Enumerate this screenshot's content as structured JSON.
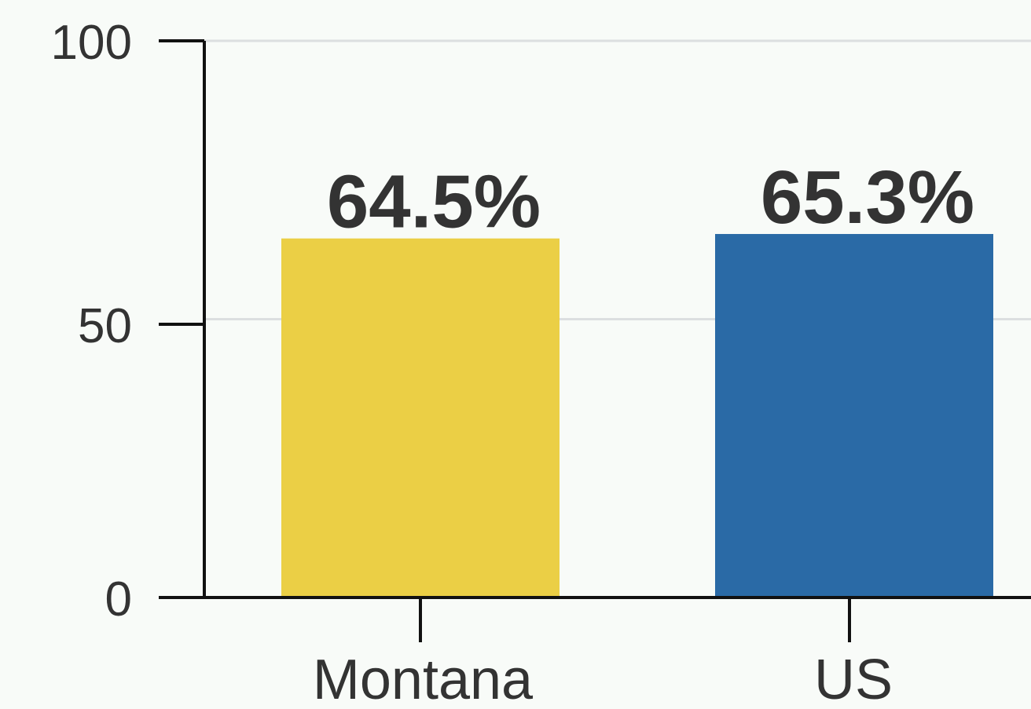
{
  "chart_data": {
    "type": "bar",
    "categories": [
      "Montana",
      "US"
    ],
    "values": [
      64.5,
      65.3
    ],
    "value_labels": [
      "64.5%",
      "65.3%"
    ],
    "colors": [
      "#ebcf45",
      "#2a6aa6"
    ],
    "ylim": [
      0,
      100
    ],
    "yticks": [
      0,
      50,
      100
    ],
    "ytick_labels": [
      "0",
      "50",
      "100"
    ],
    "grid": true,
    "title": "",
    "xlabel": "",
    "ylabel": ""
  }
}
